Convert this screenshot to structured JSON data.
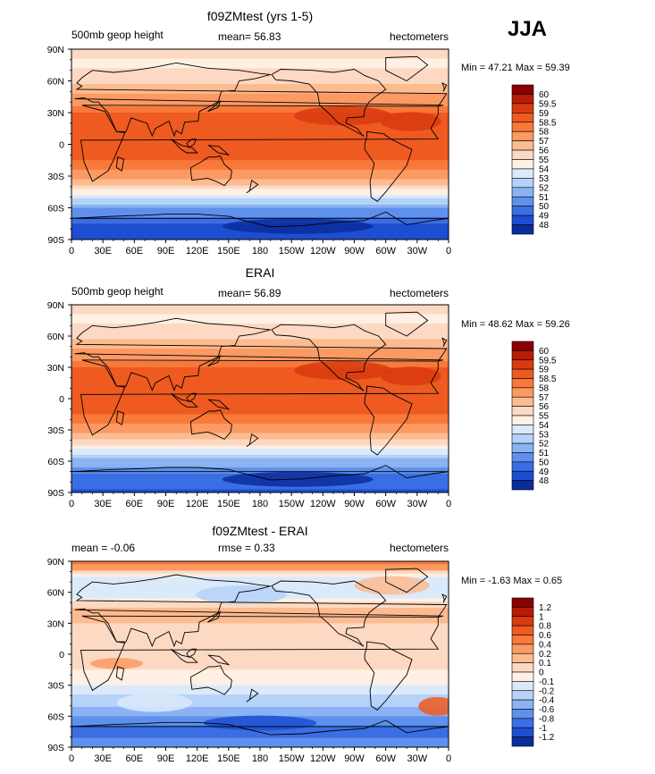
{
  "season": "JJA",
  "chart_data": [
    {
      "type": "heatmap",
      "title": "f09ZMtest (yrs 1-5)",
      "left_label": "500mb geop height",
      "stat1": "mean=  56.83",
      "units": "hectometers",
      "minmax": "Min =  47.21 Max =  59.39",
      "scheme": "full",
      "x_ticks": [
        "0",
        "30E",
        "60E",
        "90E",
        "120E",
        "150E",
        "180",
        "150W",
        "120W",
        "90W",
        "60W",
        "30W",
        "0"
      ],
      "y_ticks": [
        "90N",
        "60N",
        "30N",
        "0",
        "30S",
        "60S",
        "90S"
      ],
      "colorbar": {
        "labels": [
          "60",
          "59.5",
          "59",
          "58.5",
          "58",
          "57",
          "56",
          "55",
          "54",
          "53",
          "52",
          "51",
          "50",
          "49",
          "48"
        ],
        "colors": [
          "#8b0000",
          "#b81b07",
          "#d93a0f",
          "#ee5a20",
          "#f8793a",
          "#fc9a63",
          "#fdbb90",
          "#fdd9c3",
          "#fff0e3",
          "#dbeafb",
          "#b5d2f8",
          "#8bb3f3",
          "#5f91ec",
          "#3b6ee2",
          "#1d4ed1",
          "#0a2d9e"
        ]
      },
      "zonal_profile": {
        "lat": [
          90,
          75,
          60,
          45,
          30,
          15,
          0,
          -15,
          -30,
          -45,
          -60,
          -75,
          -90
        ],
        "value": [
          55.2,
          54.8,
          55.6,
          57.2,
          58.6,
          58.9,
          58.8,
          58.6,
          57.4,
          54.6,
          51.2,
          49.1,
          48.0
        ]
      }
    },
    {
      "type": "heatmap",
      "title": "ERAI",
      "left_label": "500mb geop height",
      "stat1": "mean=  56.89",
      "units": "hectometers",
      "minmax": "Min =  48.62 Max =  59.26",
      "scheme": "full",
      "x_ticks": [
        "0",
        "30E",
        "60E",
        "90E",
        "120E",
        "150E",
        "180",
        "150W",
        "120W",
        "90W",
        "60W",
        "30W",
        "0"
      ],
      "y_ticks": [
        "90N",
        "60N",
        "30N",
        "0",
        "30S",
        "60S",
        "90S"
      ],
      "colorbar": {
        "labels": [
          "60",
          "59.5",
          "59",
          "58.5",
          "58",
          "57",
          "56",
          "55",
          "54",
          "53",
          "52",
          "51",
          "50",
          "49",
          "48"
        ],
        "colors": [
          "#8b0000",
          "#b81b07",
          "#d93a0f",
          "#ee5a20",
          "#f8793a",
          "#fc9a63",
          "#fdbb90",
          "#fdd9c3",
          "#fff0e3",
          "#dbeafb",
          "#b5d2f8",
          "#8bb3f3",
          "#5f91ec",
          "#3b6ee2",
          "#1d4ed1",
          "#0a2d9e"
        ]
      },
      "zonal_profile": {
        "lat": [
          90,
          75,
          60,
          45,
          30,
          15,
          0,
          -15,
          -30,
          -45,
          -60,
          -75,
          -90
        ],
        "value": [
          55.1,
          54.9,
          55.7,
          57.3,
          58.5,
          58.8,
          58.8,
          58.6,
          57.5,
          54.9,
          51.6,
          49.8,
          48.7
        ]
      }
    },
    {
      "type": "heatmap",
      "title": "f09ZMtest - ERAI",
      "left_label": "mean =  -0.06",
      "stat1": "rmse =   0.33",
      "units": "hectometers",
      "minmax": "Min =  -1.63 Max =   0.65",
      "scheme": "diff",
      "x_ticks": [
        "0",
        "30E",
        "60E",
        "90E",
        "120E",
        "150E",
        "180",
        "150W",
        "120W",
        "90W",
        "60W",
        "30W",
        "0"
      ],
      "y_ticks": [
        "90N",
        "60N",
        "30N",
        "0",
        "30S",
        "60S",
        "90S"
      ],
      "colorbar": {
        "labels": [
          "1.2",
          "1",
          "0.8",
          "0.6",
          "0.4",
          "0.2",
          "0.1",
          "0",
          "-0.1",
          "-0.2",
          "-0.4",
          "-0.6",
          "-0.8",
          "-1",
          "-1.2"
        ],
        "colors": [
          "#8b0000",
          "#b81b07",
          "#d93a0f",
          "#ee5a20",
          "#f8793a",
          "#fc9a63",
          "#fdbb90",
          "#fdd9c3",
          "#fff0e3",
          "#dbeafb",
          "#b5d2f8",
          "#8bb3f3",
          "#5f91ec",
          "#3b6ee2",
          "#1d4ed1",
          "#0a2d9e"
        ]
      },
      "zonal_profile": {
        "lat": [
          90,
          75,
          60,
          45,
          30,
          15,
          0,
          -15,
          -30,
          -45,
          -60,
          -75,
          -90
        ],
        "value": [
          0.5,
          -0.1,
          -0.2,
          0.1,
          0.1,
          0.05,
          0.0,
          0.0,
          -0.1,
          -0.3,
          -0.6,
          -0.9,
          -0.7
        ]
      }
    }
  ]
}
